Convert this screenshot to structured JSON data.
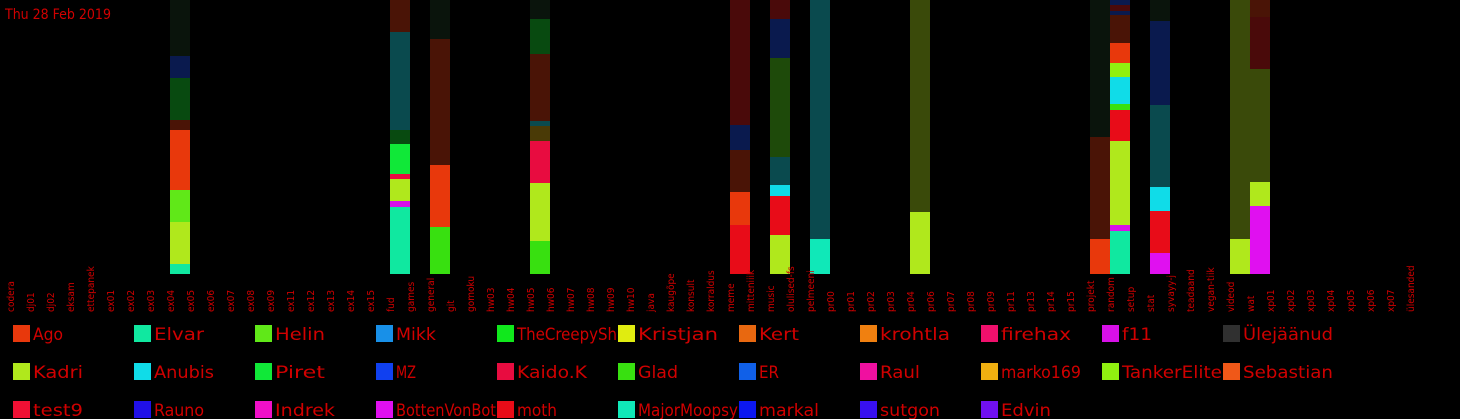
{
  "date_label": "Thu 28 Feb 2019",
  "chart_data": {
    "type": "bar",
    "stacked": true,
    "legend_position": "bottom",
    "categories": [
      "codera",
      "dj01",
      "dj02",
      "eksam",
      "ettepanek",
      "ex01",
      "ex02",
      "ex03",
      "ex04",
      "ex05",
      "ex06",
      "ex07",
      "ex08",
      "ex09",
      "ex11",
      "ex12",
      "ex13",
      "ex14",
      "ex15",
      "fud",
      "games",
      "general",
      "git",
      "gomoku",
      "hw03",
      "hw04",
      "hw05",
      "hw06",
      "hw07",
      "hw08",
      "hw09",
      "hw10",
      "java",
      "kaugõpe",
      "konsult",
      "korraldus",
      "meme",
      "mitteniiik",
      "music",
      "olulised-fs",
      "pelmeeni",
      "pr00",
      "pr01",
      "pr02",
      "pr03",
      "pr04",
      "pr06",
      "pr07",
      "pr08",
      "pr09",
      "pr11",
      "pr13",
      "pr14",
      "pr15",
      "projekt",
      "random",
      "setup",
      "stat",
      "syvayy-j",
      "teadaand",
      "vegan-tiik",
      "videod",
      "wat",
      "xp01",
      "xp02",
      "xp03",
      "xp04",
      "xp05",
      "xp06",
      "xp07",
      "ülesanded"
    ],
    "legend": [
      {
        "name": "Ago",
        "color": "#e8380c"
      },
      {
        "name": "Elvar",
        "color": "#10e8a0"
      },
      {
        "name": "Helin",
        "color": "#60e818"
      },
      {
        "name": "Mikk",
        "color": "#1890e8"
      },
      {
        "name": "TheCreepySh",
        "color": "#10e81c"
      },
      {
        "name": "Kristjan",
        "color": "#e0ec10"
      },
      {
        "name": "Kert",
        "color": "#e86810"
      },
      {
        "name": "krohtla",
        "color": "#f08010"
      },
      {
        "name": "firehax",
        "color": "#f0106c"
      },
      {
        "name": "f11",
        "color": "#d810e8"
      },
      {
        "name": "Ülejäänud",
        "color": "#303030"
      },
      {
        "name": "Kadri",
        "color": "#b0e81c"
      },
      {
        "name": "Anubis",
        "color": "#10dce8"
      },
      {
        "name": "Piret",
        "color": "#10e838"
      },
      {
        "name": "MZ",
        "color": "#1040f0"
      },
      {
        "name": "Kaido.K",
        "color": "#e80c40"
      },
      {
        "name": "Glad",
        "color": "#38e010"
      },
      {
        "name": "ER",
        "color": "#1060e8"
      },
      {
        "name": "Raul",
        "color": "#f010a0"
      },
      {
        "name": "marko169",
        "color": "#f0b010"
      },
      {
        "name": "TankerElite",
        "color": "#90f010"
      },
      {
        "name": "Sebastian",
        "color": "#f05818"
      },
      {
        "name": "test9",
        "color": "#f01034"
      },
      {
        "name": "Rauno",
        "color": "#2010e8"
      },
      {
        "name": "Indrek",
        "color": "#f010c8"
      },
      {
        "name": "BottenVonBot",
        "color": "#e010f0"
      },
      {
        "name": "moth",
        "color": "#e80c18"
      },
      {
        "name": "MajorMoopsy",
        "color": "#10e8b8"
      },
      {
        "name": "markal",
        "color": "#0c18f0"
      },
      {
        "name": "sutgon",
        "color": "#3810f0"
      },
      {
        "name": "Edvin",
        "color": "#7010f0"
      }
    ],
    "bars": [
      {
        "category": "ex04",
        "segments": [
          {
            "value": 10,
            "color": "#10e8a0"
          },
          {
            "value": 42,
            "color": "#b0e81c"
          },
          {
            "value": 32,
            "color": "#60e818"
          },
          {
            "value": 60,
            "color": "#e8380c"
          },
          {
            "value": 10,
            "color": "#4a1406"
          },
          {
            "value": 42,
            "color": "#084a10"
          },
          {
            "value": 22,
            "color": "#0a1a4e"
          },
          {
            "value": 56,
            "color": "#0a140c"
          }
        ]
      },
      {
        "category": "fud",
        "segments": [
          {
            "value": 67,
            "color": "#10e8a0"
          },
          {
            "value": 6,
            "color": "#d810e8"
          },
          {
            "value": 22,
            "color": "#b0e81c"
          },
          {
            "value": 5,
            "color": "#e80c40"
          },
          {
            "value": 30,
            "color": "#10e838"
          },
          {
            "value": 14,
            "color": "#084a10"
          },
          {
            "value": 98,
            "color": "#0a4a4e"
          },
          {
            "value": 32,
            "color": "#4a1406"
          }
        ]
      },
      {
        "category": "general",
        "segments": [
          {
            "value": 47,
            "color": "#38e010"
          },
          {
            "value": 62,
            "color": "#e8380c"
          },
          {
            "value": 126,
            "color": "#4a1406"
          },
          {
            "value": 39,
            "color": "#0a140c"
          }
        ]
      },
      {
        "category": "hw05",
        "segments": [
          {
            "value": 33,
            "color": "#38e010"
          },
          {
            "value": 58,
            "color": "#b0e81c"
          },
          {
            "value": 42,
            "color": "#e80c40"
          },
          {
            "value": 15,
            "color": "#4a3a06"
          },
          {
            "value": 5,
            "color": "#0a4a4e"
          },
          {
            "value": 67,
            "color": "#4a1406"
          },
          {
            "value": 35,
            "color": "#084a10"
          },
          {
            "value": 19,
            "color": "#0a140c"
          }
        ]
      },
      {
        "category": "meme",
        "segments": [
          {
            "value": 49,
            "color": "#e80c18"
          },
          {
            "value": 33,
            "color": "#e8380c"
          },
          {
            "value": 42,
            "color": "#4a1406"
          },
          {
            "value": 25,
            "color": "#0a1a4e"
          },
          {
            "value": 125,
            "color": "#4a0a0a"
          }
        ]
      },
      {
        "category": "music",
        "segments": [
          {
            "value": 39,
            "color": "#b0e81c"
          },
          {
            "value": 39,
            "color": "#e80c18"
          },
          {
            "value": 11,
            "color": "#10dce8"
          },
          {
            "value": 28,
            "color": "#0a4a4e"
          },
          {
            "value": 99,
            "color": "#1e4a0a"
          },
          {
            "value": 39,
            "color": "#0a1a4e"
          },
          {
            "value": 19,
            "color": "#4a0a0a"
          }
        ]
      },
      {
        "category": "pelmeeni",
        "segments": [
          {
            "value": 35,
            "color": "#10e8b8"
          },
          {
            "value": 239,
            "color": "#0a4a4e"
          }
        ]
      },
      {
        "category": "pr04",
        "segments": [
          {
            "value": 62,
            "color": "#b0e81c"
          },
          {
            "value": 212,
            "color": "#3a4a0a"
          }
        ]
      },
      {
        "category": "projekt",
        "segments": [
          {
            "value": 35,
            "color": "#e8380c"
          },
          {
            "value": 102,
            "color": "#4a1406"
          },
          {
            "value": 137,
            "color": "#0a140c"
          }
        ]
      },
      {
        "category": "random",
        "segments": [
          {
            "value": 43,
            "color": "#10e8a0"
          },
          {
            "value": 6,
            "color": "#d810e8"
          },
          {
            "value": 84,
            "color": "#b0e81c"
          },
          {
            "value": 31,
            "color": "#e80c18"
          },
          {
            "value": 6,
            "color": "#38e010"
          },
          {
            "value": 27,
            "color": "#10dce8"
          },
          {
            "value": 14,
            "color": "#90f010"
          },
          {
            "value": 20,
            "color": "#e8380c"
          },
          {
            "value": 28,
            "color": "#4a1406"
          },
          {
            "value": 4,
            "color": "#0a1a4e"
          },
          {
            "value": 6,
            "color": "#4a0a0a"
          },
          {
            "value": 5,
            "color": "#0a1a4e"
          }
        ]
      },
      {
        "category": "stat",
        "segments": [
          {
            "value": 21,
            "color": "#e010f0"
          },
          {
            "value": 42,
            "color": "#e80c18"
          },
          {
            "value": 24,
            "color": "#10dce8"
          },
          {
            "value": 82,
            "color": "#0a4a4e"
          },
          {
            "value": 84,
            "color": "#0a1a4e"
          },
          {
            "value": 21,
            "color": "#0a140c"
          }
        ]
      },
      {
        "category": "videod",
        "segments": [
          {
            "value": 35,
            "color": "#b0e81c"
          },
          {
            "value": 239,
            "color": "#3a4a0a"
          }
        ]
      },
      {
        "category": "wat",
        "segments": [
          {
            "value": 68,
            "color": "#e010f0"
          },
          {
            "value": 24,
            "color": "#b0e81c"
          },
          {
            "value": 113,
            "color": "#3a4a0a"
          },
          {
            "value": 52,
            "color": "#4a0a0a"
          },
          {
            "value": 17,
            "color": "#4a1406"
          }
        ]
      }
    ]
  }
}
